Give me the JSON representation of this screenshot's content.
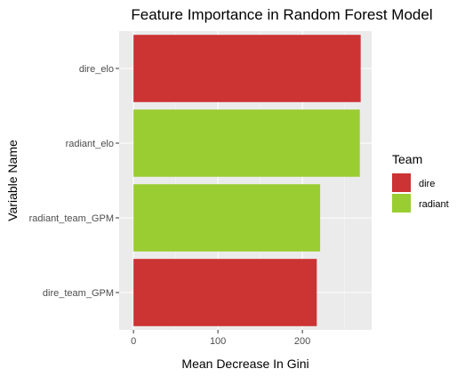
{
  "chart_data": {
    "type": "bar",
    "orientation": "horizontal",
    "title": "Feature Importance in Random Forest Model",
    "xlabel": "Mean Decrease In Gini",
    "ylabel": "Variable Name",
    "categories": [
      "dire_elo",
      "radiant_elo",
      "radiant_team_GPM",
      "dire_team_GPM"
    ],
    "values": [
      269,
      268,
      221,
      217
    ],
    "teams": [
      "dire",
      "radiant",
      "radiant",
      "dire"
    ],
    "xlim": [
      -17,
      282
    ],
    "xticks": [
      0,
      100,
      200
    ],
    "grid": true,
    "legend": {
      "title": "Team",
      "placement": "right",
      "items": [
        {
          "label": "dire",
          "color": "#CC3333"
        },
        {
          "label": "radiant",
          "color": "#9ACD32"
        }
      ]
    },
    "panel_background": "#EBEBEB"
  }
}
